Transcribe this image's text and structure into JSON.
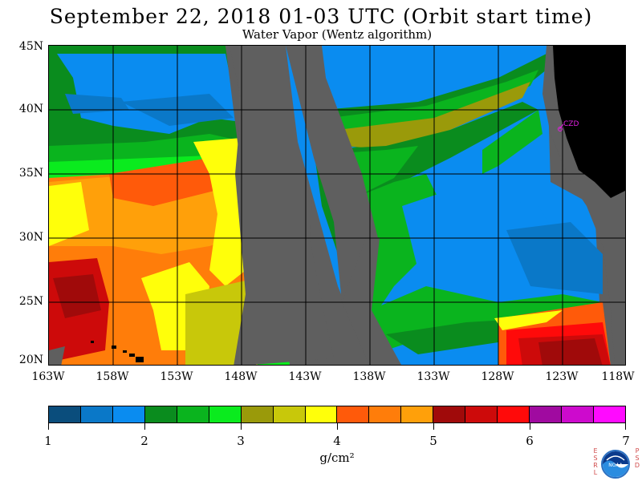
{
  "header": {
    "title": "September 22, 2018  01-03 UTC  (Orbit start time)",
    "subtitle": "Water Vapor (Wentz algorithm)"
  },
  "map": {
    "lat_labels": [
      "45N",
      "40N",
      "35N",
      "30N",
      "25N",
      "20N"
    ],
    "lon_labels": [
      "163W",
      "158W",
      "153W",
      "148W",
      "143W",
      "138W",
      "133W",
      "128W",
      "123W",
      "118W"
    ],
    "station_label": "CZD",
    "station_color": "#e020e0",
    "land_color": "#000000",
    "no_data_color": "#5f5f5f"
  },
  "colorbar": {
    "colors": [
      "#0a4d7c",
      "#0a78c8",
      "#0a8cf0",
      "#0a8c1e",
      "#0ab41e",
      "#0aeb1e",
      "#9a9a0a",
      "#c8c80a",
      "#ffff0a",
      "#ff5a0a",
      "#ff7d0a",
      "#ffa00a",
      "#a00a0a",
      "#cd0a0a",
      "#ff0a0a",
      "#a00aa0",
      "#cd0acd",
      "#ff0aff"
    ],
    "tick_labels": [
      "1",
      "2",
      "3",
      "4",
      "5",
      "6",
      "7"
    ],
    "unit": "g/cm²"
  },
  "logo": {
    "left_letters": [
      "E",
      "S",
      "R",
      "L"
    ],
    "right_letters": [
      "P",
      "S",
      "D"
    ],
    "center_text": "NOAA"
  }
}
